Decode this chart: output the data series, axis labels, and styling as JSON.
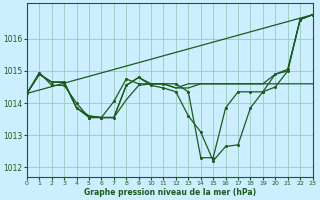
{
  "xlabel": "Graphe pression niveau de la mer (hPa)",
  "background_color": "#cceeff",
  "grid_color": "#99ccbb",
  "line_color": "#1a5c1a",
  "xlim": [
    0,
    23
  ],
  "ylim": [
    1011.7,
    1017.1
  ],
  "yticks": [
    1012,
    1013,
    1014,
    1015,
    1016
  ],
  "xticks": [
    0,
    1,
    2,
    3,
    4,
    5,
    6,
    7,
    8,
    9,
    10,
    11,
    12,
    13,
    14,
    15,
    16,
    17,
    18,
    19,
    20,
    21,
    22,
    23
  ],
  "series_with_markers": [
    {
      "y": [
        1014.3,
        1014.9,
        1014.65,
        1014.65,
        1013.85,
        1013.6,
        1013.55,
        1013.55,
        1014.1,
        1014.55,
        1014.6,
        1014.6,
        1014.47,
        1014.47,
        1014.6,
        1014.6,
        1014.6,
        1014.6,
        1014.6,
        1014.6,
        1014.6,
        1014.6,
        1014.6,
        1014.6
      ],
      "has_markers": false
    },
    {
      "y": [
        1014.3,
        1014.9,
        1014.65,
        1014.65,
        1013.85,
        1013.6,
        1013.55,
        1013.55,
        1014.55,
        1014.8,
        1014.6,
        1014.6,
        1014.47,
        1014.6,
        1014.6,
        1014.6,
        1014.6,
        1014.6,
        1014.6,
        1014.6,
        1014.9,
        1015.0,
        1016.6,
        1016.75
      ],
      "has_markers": false
    },
    {
      "y": [
        1014.3,
        1014.9,
        1014.65,
        1014.65,
        1013.85,
        1013.55,
        1013.55,
        1013.55,
        1014.55,
        1014.8,
        1014.55,
        1014.47,
        1014.35,
        1013.6,
        1013.1,
        1012.2,
        1012.65,
        1012.7,
        1013.85,
        1014.35,
        1014.5,
        1015.0,
        1016.6,
        1016.75
      ],
      "has_markers": true
    },
    {
      "y": [
        1014.3,
        1014.95,
        1014.55,
        1014.55,
        1014.0,
        1013.55,
        1013.55,
        1014.05,
        1014.75,
        1014.6,
        1014.6,
        1014.6,
        1014.6,
        1014.35,
        1012.3,
        1012.3,
        1013.85,
        1014.35,
        1014.35,
        1014.35,
        1014.9,
        1015.05,
        1016.6,
        1016.75
      ],
      "has_markers": true
    }
  ],
  "diagonal_line": {
    "x": [
      0,
      23
    ],
    "y": [
      1014.3,
      1016.75
    ]
  }
}
